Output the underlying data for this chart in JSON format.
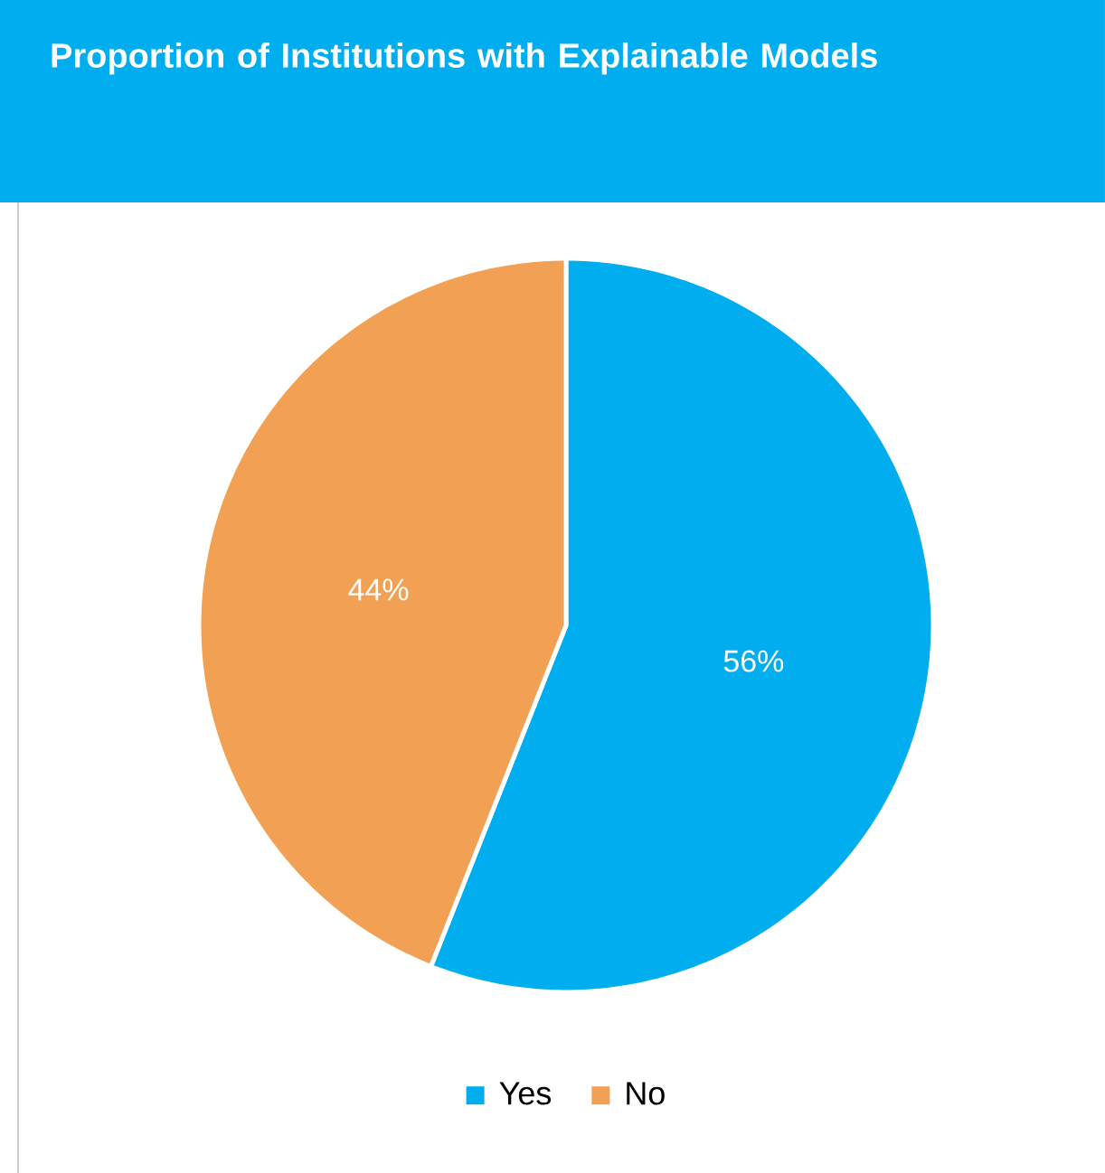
{
  "chart_data": {
    "type": "pie",
    "title": "Proportion of Institutions with Explainable Models",
    "categories": [
      "Yes",
      "No"
    ],
    "values": [
      56,
      44
    ],
    "colors": [
      "#00aeef",
      "#f2a154"
    ],
    "value_labels": [
      "56%",
      "44%"
    ],
    "legend": "bottom"
  }
}
